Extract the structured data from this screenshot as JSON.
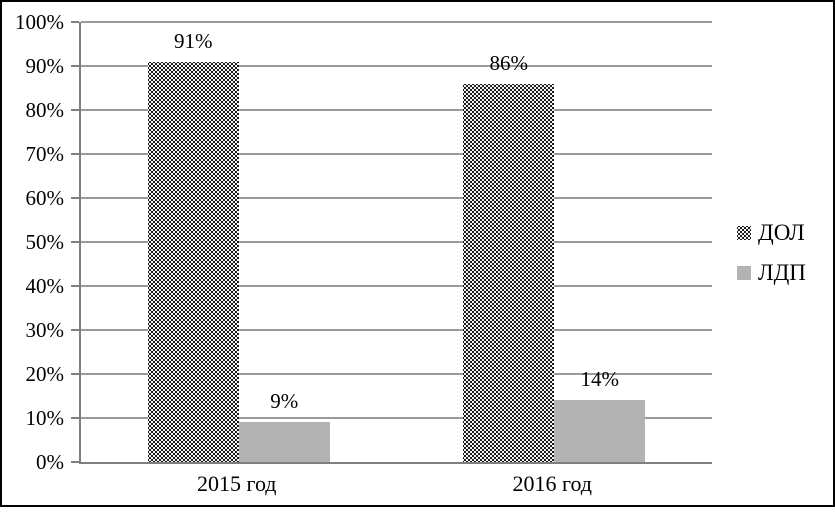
{
  "chart_data": {
    "type": "bar",
    "title": "",
    "categories": [
      "2015 год",
      "2016 год"
    ],
    "series": [
      {
        "name": "ДОЛ",
        "values": [
          91,
          86
        ],
        "data_labels": [
          "91%",
          "86%"
        ],
        "fill": "pattern-white-dots-on-black",
        "color": "#000000"
      },
      {
        "name": "ЛДП",
        "values": [
          9,
          14
        ],
        "data_labels": [
          "9%",
          "14%"
        ],
        "fill": "solid",
        "color": "#b3b3b3"
      }
    ],
    "y_axis": {
      "min": 0,
      "max": 100,
      "step": 10,
      "tick_labels": [
        "0%",
        "10%",
        "20%",
        "30%",
        "40%",
        "50%",
        "60%",
        "70%",
        "80%",
        "90%",
        "100%"
      ]
    },
    "x_axis_labels": [
      "2015 год",
      "2016 год"
    ],
    "grid": true,
    "legend_position": "right"
  },
  "style_colors": {
    "gridline": "#9a9a9a",
    "axis": "#7f7f7f",
    "frame": "#000000",
    "ldp_fill": "#b3b3b3",
    "dol_fill": "#000000",
    "text": "#000000",
    "background": "#ffffff"
  }
}
